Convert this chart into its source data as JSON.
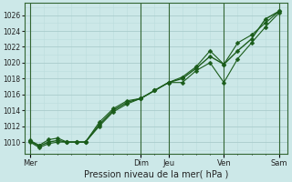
{
  "xlabel": "Pression niveau de la mer( hPa )",
  "bg_color": "#cce8e8",
  "grid_major_color": "#aacccc",
  "grid_minor_color": "#bbdddd",
  "line_color": "#1a5c1a",
  "ylim": [
    1008.5,
    1027.5
  ],
  "yticks": [
    1010,
    1012,
    1014,
    1016,
    1018,
    1020,
    1022,
    1024,
    1026
  ],
  "day_labels": [
    "Mer",
    "Dim",
    "Jeu",
    "Ven",
    "Sam"
  ],
  "day_positions": [
    0,
    4.0,
    5.0,
    7.0,
    9.0
  ],
  "xlim": [
    -0.2,
    9.3
  ],
  "series1_x": [
    0.0,
    0.33,
    0.67,
    1.0,
    1.33,
    1.67,
    2.0,
    2.5,
    3.0,
    3.5,
    4.0,
    4.5,
    5.0,
    5.5,
    6.0,
    6.5,
    7.0,
    7.5,
    8.0,
    8.5,
    9.0
  ],
  "series1_y": [
    1010.2,
    1009.6,
    1010.3,
    1010.5,
    1010.0,
    1010.0,
    1010.0,
    1012.0,
    1013.8,
    1014.8,
    1015.5,
    1016.5,
    1017.5,
    1018.2,
    1019.5,
    1021.5,
    1019.8,
    1022.5,
    1023.5,
    1025.0,
    1026.5
  ],
  "series2_x": [
    0.0,
    0.33,
    0.67,
    1.0,
    1.33,
    1.67,
    2.0,
    2.5,
    3.0,
    3.5,
    4.0,
    4.5,
    5.0,
    5.5,
    6.0,
    6.5,
    7.0,
    7.5,
    8.0,
    8.5,
    9.0
  ],
  "series2_y": [
    1010.0,
    1009.3,
    1009.8,
    1010.0,
    1010.0,
    1010.0,
    1010.0,
    1012.5,
    1014.2,
    1015.2,
    1015.5,
    1016.5,
    1017.5,
    1017.5,
    1019.0,
    1020.0,
    1017.5,
    1020.5,
    1022.5,
    1024.5,
    1026.3
  ],
  "series3_x": [
    0.0,
    0.33,
    0.67,
    1.0,
    1.33,
    1.67,
    2.0,
    2.5,
    3.0,
    3.5,
    4.0,
    4.5,
    5.0,
    5.5,
    6.0,
    6.5,
    7.0,
    7.5,
    8.0,
    8.5,
    9.0
  ],
  "series3_y": [
    1010.1,
    1009.5,
    1010.0,
    1010.2,
    1010.0,
    1010.0,
    1010.0,
    1012.2,
    1014.0,
    1015.0,
    1015.5,
    1016.5,
    1017.5,
    1018.0,
    1019.3,
    1020.8,
    1019.8,
    1021.5,
    1023.0,
    1025.5,
    1026.5
  ]
}
